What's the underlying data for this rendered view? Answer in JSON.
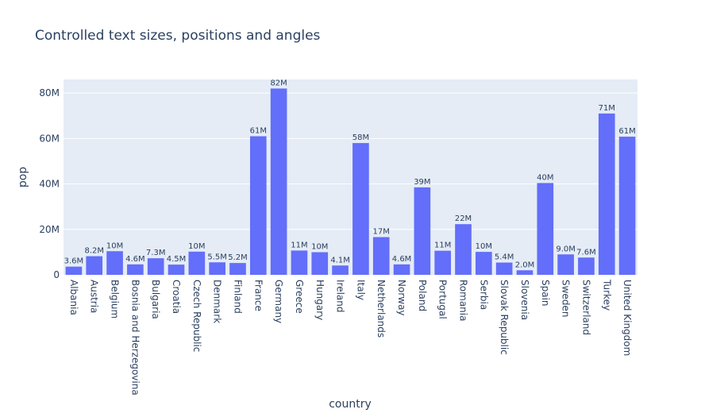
{
  "chart_data": {
    "type": "bar",
    "title": "Controlled text sizes, positions and angles",
    "xlabel": "country",
    "ylabel": "pop",
    "ylim": [
      0,
      86
    ],
    "y_tick_values": [
      0,
      20,
      40,
      60,
      80
    ],
    "y_tick_labels": [
      "0",
      "20M",
      "40M",
      "60M",
      "80M"
    ],
    "categories": [
      "Albania",
      "Austria",
      "Belgium",
      "Bosnia and Herzegovina",
      "Bulgaria",
      "Croatia",
      "Czech Republic",
      "Denmark",
      "Finland",
      "France",
      "Germany",
      "Greece",
      "Hungary",
      "Ireland",
      "Italy",
      "Netherlands",
      "Norway",
      "Poland",
      "Portugal",
      "Romania",
      "Serbia",
      "Slovak Republic",
      "Slovenia",
      "Spain",
      "Sweden",
      "Switzerland",
      "Turkey",
      "United Kingdom"
    ],
    "values": [
      3.6,
      8.2,
      10.4,
      4.6,
      7.3,
      4.5,
      10.2,
      5.5,
      5.2,
      61,
      82,
      10.7,
      9.96,
      4.1,
      58,
      16.6,
      4.6,
      38.5,
      10.6,
      22.3,
      10.1,
      5.4,
      2.0,
      40.4,
      9.0,
      7.6,
      71,
      60.8
    ],
    "data_labels": [
      "3.6M",
      "8.2M",
      "10M",
      "4.6M",
      "7.3M",
      "4.5M",
      "10M",
      "5.5M",
      "5.2M",
      "61M",
      "82M",
      "11M",
      "10M",
      "4.1M",
      "58M",
      "17M",
      "4.6M",
      "39M",
      "11M",
      "22M",
      "10M",
      "5.4M",
      "2.0M",
      "40M",
      "9.0M",
      "7.6M",
      "71M",
      "61M"
    ],
    "bar_color": "#636efa",
    "plot_bg": "#e5ecf6",
    "grid_color": "#ffffff"
  }
}
